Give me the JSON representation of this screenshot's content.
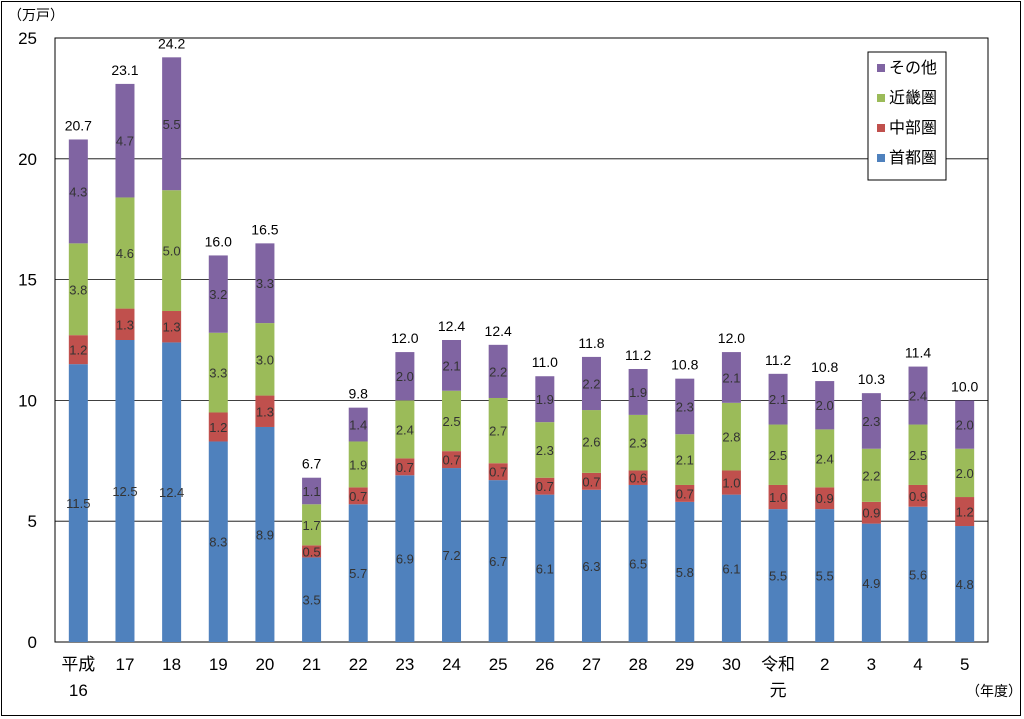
{
  "chart_data": {
    "type": "bar",
    "stacked": true,
    "y_unit": "（万戸）",
    "x_unit": "（年度）",
    "ylim": [
      0,
      25
    ],
    "yticks": [
      0,
      5,
      10,
      15,
      20,
      25
    ],
    "grid": true,
    "legend_position": "top-right",
    "categories": [
      [
        "平成",
        "16"
      ],
      [
        "17"
      ],
      [
        "18"
      ],
      [
        "19"
      ],
      [
        "20"
      ],
      [
        "21"
      ],
      [
        "22"
      ],
      [
        "23"
      ],
      [
        "24"
      ],
      [
        "25"
      ],
      [
        "26"
      ],
      [
        "27"
      ],
      [
        "28"
      ],
      [
        "29"
      ],
      [
        "30"
      ],
      [
        "令和",
        "元"
      ],
      [
        "2"
      ],
      [
        "3"
      ],
      [
        "4"
      ],
      [
        "5"
      ]
    ],
    "series": [
      {
        "name": "首都圏",
        "color": "#4f81bd",
        "values": [
          11.5,
          12.5,
          12.4,
          8.3,
          8.9,
          3.5,
          5.7,
          6.9,
          7.2,
          6.7,
          6.1,
          6.3,
          6.5,
          5.8,
          6.1,
          5.5,
          5.5,
          4.9,
          5.6,
          4.8
        ]
      },
      {
        "name": "中部圏",
        "color": "#c0504d",
        "values": [
          1.2,
          1.3,
          1.3,
          1.2,
          1.3,
          0.5,
          0.7,
          0.7,
          0.7,
          0.7,
          0.7,
          0.7,
          0.6,
          0.7,
          1.0,
          1.0,
          0.9,
          0.9,
          0.9,
          1.2
        ]
      },
      {
        "name": "近畿圏",
        "color": "#9bbb59",
        "values": [
          3.8,
          4.6,
          5.0,
          3.3,
          3.0,
          1.7,
          1.9,
          2.4,
          2.5,
          2.7,
          2.3,
          2.6,
          2.3,
          2.1,
          2.8,
          2.5,
          2.4,
          2.2,
          2.5,
          2.0
        ]
      },
      {
        "name": "その他",
        "color": "#8064a2",
        "values": [
          4.3,
          4.7,
          5.5,
          3.2,
          3.3,
          1.1,
          1.4,
          2.0,
          2.1,
          2.2,
          1.9,
          2.2,
          1.9,
          2.3,
          2.1,
          2.1,
          2.0,
          2.3,
          2.4,
          2.0
        ]
      }
    ],
    "totals": [
      "20.7",
      "23.1",
      "24.2",
      "16.0",
      "16.5",
      "6.7",
      "9.8",
      "12.0",
      "12.4",
      "12.4",
      "11.0",
      "11.8",
      "11.2",
      "10.8",
      "12.0",
      "11.2",
      "10.8",
      "10.3",
      "11.4",
      "10.0"
    ],
    "legend_order": [
      "その他",
      "近畿圏",
      "中部圏",
      "首都圏"
    ]
  }
}
